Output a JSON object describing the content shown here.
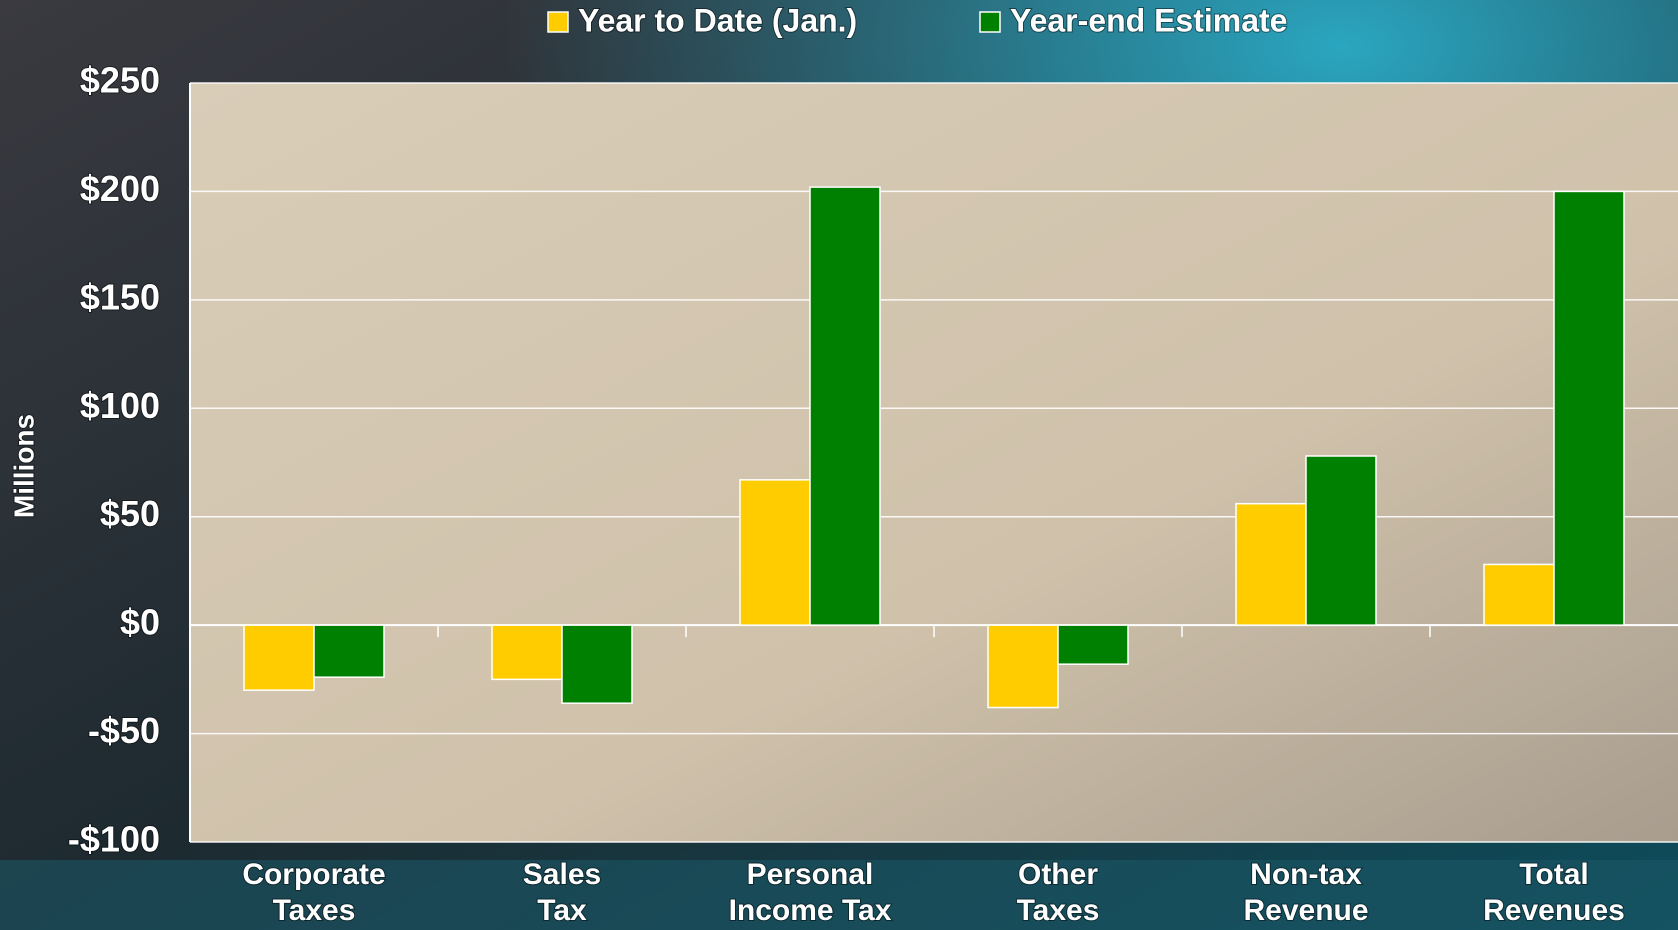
{
  "chart_data": {
    "type": "bar",
    "y_label": "Millions",
    "categories": [
      [
        "Corporate",
        "Taxes"
      ],
      [
        "Sales",
        "Tax"
      ],
      [
        "Personal",
        "Income Tax"
      ],
      [
        "Other",
        "Taxes"
      ],
      [
        "Non-tax",
        "Revenue"
      ],
      [
        "Total",
        "Revenues"
      ]
    ],
    "series": [
      {
        "name": "Year to Date (Jan.)",
        "color": "#ffcc00",
        "values": [
          -30,
          -25,
          67,
          -38,
          56,
          28
        ]
      },
      {
        "name": "Year-end Estimate",
        "color": "#008000",
        "values": [
          -24,
          -36,
          202,
          -18,
          78,
          200
        ]
      }
    ],
    "ylim": [
      -100,
      250
    ],
    "yticks": [
      {
        "value": -100,
        "label": "-$100"
      },
      {
        "value": -50,
        "label": "-$50"
      },
      {
        "value": 0,
        "label": "$0"
      },
      {
        "value": 50,
        "label": "$50"
      },
      {
        "value": 100,
        "label": "$100"
      },
      {
        "value": 150,
        "label": "$150"
      },
      {
        "value": 200,
        "label": "$200"
      },
      {
        "value": 250,
        "label": "$250"
      }
    ],
    "grid": true
  }
}
